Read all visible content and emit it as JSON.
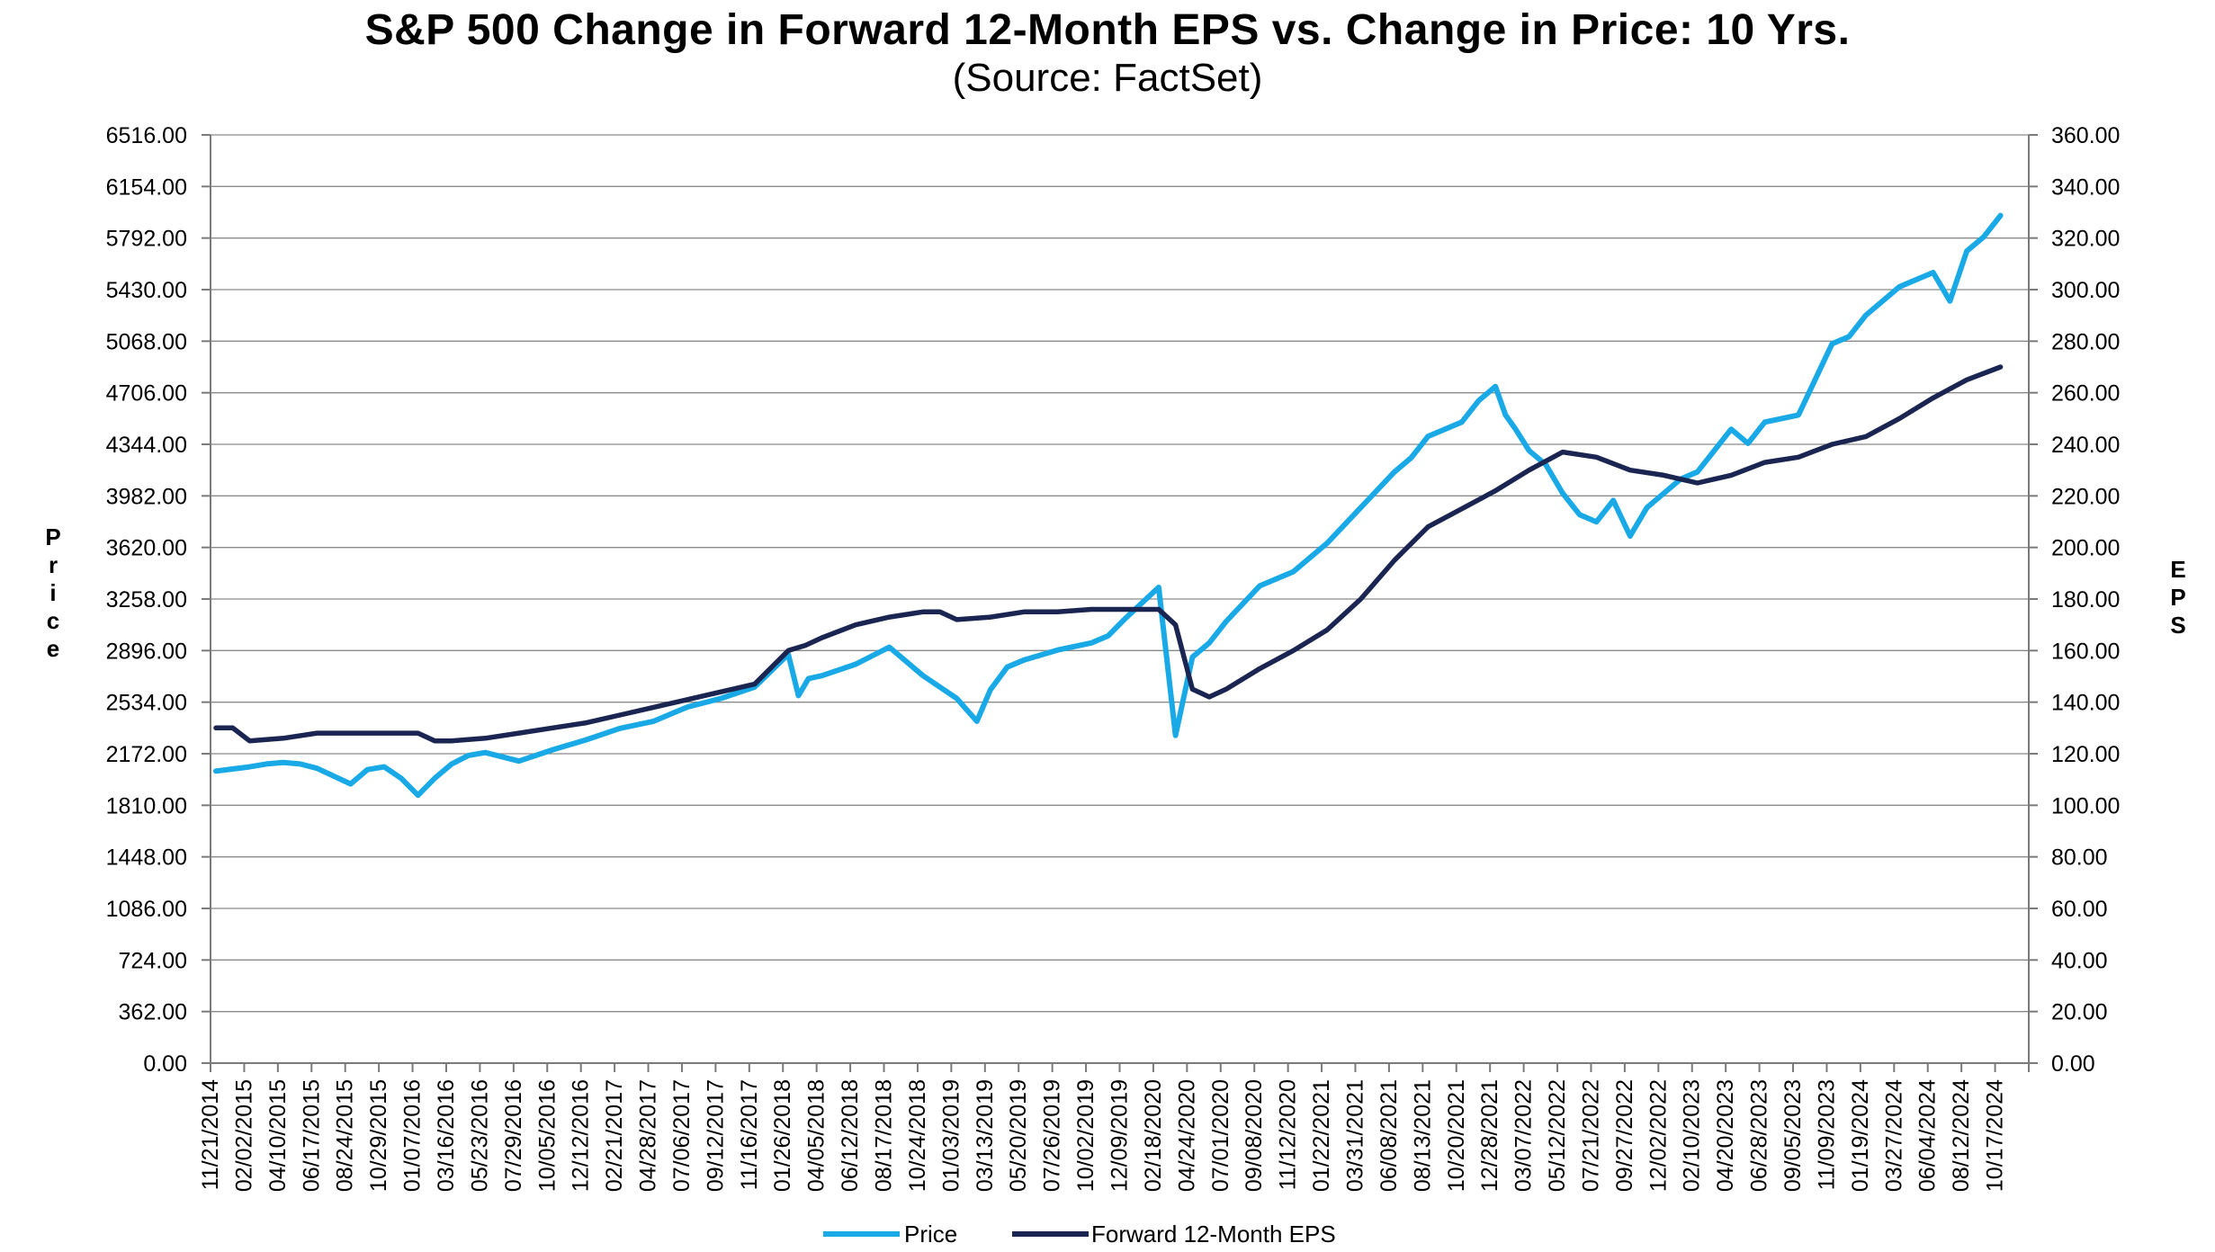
{
  "chart_data": {
    "type": "line",
    "title": "S&P 500 Change in Forward 12-Month EPS vs. Change in Price: 10 Yrs.",
    "subtitle": "(Source: FactSet)",
    "ylabel_left": "Price",
    "ylabel_right": "EPS",
    "ylim_left": [
      0,
      6516
    ],
    "ylim_right": [
      0,
      360
    ],
    "y_ticks_left": [
      "6516.00",
      "6154.00",
      "5792.00",
      "5430.00",
      "5068.00",
      "4706.00",
      "4344.00",
      "3982.00",
      "3620.00",
      "3258.00",
      "2896.00",
      "2534.00",
      "2172.00",
      "1810.00",
      "1448.00",
      "1086.00",
      "724.00",
      "362.00",
      "0.00"
    ],
    "y_ticks_right": [
      "360.00",
      "340.00",
      "320.00",
      "300.00",
      "280.00",
      "260.00",
      "240.00",
      "220.00",
      "200.00",
      "180.00",
      "160.00",
      "140.00",
      "120.00",
      "100.00",
      "80.00",
      "60.00",
      "40.00",
      "20.00",
      "0.00"
    ],
    "x_ticks": [
      "11/21/2014",
      "02/02/2015",
      "04/10/2015",
      "06/17/2015",
      "08/24/2015",
      "10/29/2015",
      "01/07/2016",
      "03/16/2016",
      "05/23/2016",
      "07/29/2016",
      "10/05/2016",
      "12/12/2016",
      "02/21/2017",
      "04/28/2017",
      "07/06/2017",
      "09/12/2017",
      "11/16/2017",
      "01/26/2018",
      "04/05/2018",
      "06/12/2018",
      "08/17/2018",
      "10/24/2018",
      "01/03/2019",
      "03/13/2019",
      "05/20/2019",
      "07/26/2019",
      "10/02/2019",
      "12/09/2019",
      "02/18/2020",
      "04/24/2020",
      "07/01/2020",
      "09/08/2020",
      "11/12/2020",
      "01/22/2021",
      "03/31/2021",
      "06/08/2021",
      "08/13/2021",
      "10/20/2021",
      "12/28/2021",
      "03/07/2022",
      "05/12/2022",
      "07/21/2022",
      "09/27/2022",
      "12/02/2022",
      "02/10/2023",
      "04/20/2023",
      "06/28/2023",
      "09/05/2023",
      "11/09/2023",
      "01/19/2024",
      "03/27/2024",
      "06/04/2024",
      "08/12/2024",
      "10/17/2024"
    ],
    "grid": true,
    "legend_position": "bottom",
    "series": [
      {
        "name": "Price",
        "axis": "left",
        "color": "#19a9e6",
        "x": [
          0,
          1,
          1.5,
          2,
          2.5,
          3,
          4,
          4.5,
          5,
          5.5,
          6,
          6.5,
          7,
          7.5,
          8,
          9,
          10,
          11,
          12,
          13,
          14,
          15,
          16,
          17,
          17.3,
          17.6,
          18,
          19,
          20,
          21,
          22,
          22.6,
          23,
          23.5,
          24,
          25,
          26,
          26.5,
          27,
          28,
          28.5,
          29,
          29.5,
          30,
          31,
          32,
          33,
          34,
          35,
          35.5,
          36,
          37,
          37.5,
          38,
          38.3,
          38.6,
          39,
          39.5,
          40,
          40.5,
          41,
          41.5,
          42,
          42.5,
          43,
          43.5,
          44,
          45,
          45.5,
          46,
          47,
          47.5,
          48,
          48.5,
          49,
          50,
          51,
          51.5,
          52,
          52.5,
          53
        ],
        "values": [
          2050,
          2080,
          2100,
          2110,
          2100,
          2070,
          1960,
          2060,
          2080,
          2000,
          1880,
          2000,
          2100,
          2160,
          2180,
          2120,
          2200,
          2270,
          2350,
          2400,
          2500,
          2560,
          2640,
          2870,
          2580,
          2700,
          2720,
          2800,
          2920,
          2720,
          2560,
          2400,
          2620,
          2780,
          2830,
          2900,
          2950,
          3000,
          3120,
          3340,
          2300,
          2850,
          2950,
          3100,
          3350,
          3450,
          3650,
          3900,
          4150,
          4250,
          4400,
          4500,
          4650,
          4750,
          4550,
          4450,
          4300,
          4200,
          4000,
          3850,
          3800,
          3950,
          3700,
          3900,
          4000,
          4100,
          4150,
          4450,
          4350,
          4500,
          4550,
          4800,
          5050,
          5100,
          5250,
          5450,
          5550,
          5350,
          5700,
          5800,
          5950
        ]
      },
      {
        "name": "Forward 12-Month EPS",
        "axis": "right",
        "color": "#1a2552",
        "x": [
          0,
          0.5,
          1,
          2,
          3,
          4,
          5,
          6,
          6.5,
          7,
          8,
          9,
          10,
          11,
          12,
          13,
          14,
          15,
          16,
          17,
          17.5,
          18,
          19,
          20,
          21,
          21.5,
          22,
          23,
          24,
          25,
          26,
          27,
          28,
          28.5,
          29,
          29.5,
          30,
          31,
          32,
          33,
          34,
          35,
          36,
          37,
          38,
          39,
          40,
          41,
          42,
          43,
          44,
          45,
          46,
          47,
          48,
          49,
          50,
          51,
          52,
          53
        ],
        "values": [
          130,
          130,
          125,
          126,
          128,
          128,
          128,
          128,
          125,
          125,
          126,
          128,
          130,
          132,
          135,
          138,
          141,
          144,
          147,
          160,
          162,
          165,
          170,
          173,
          175,
          175,
          172,
          173,
          175,
          175,
          176,
          176,
          176,
          170,
          145,
          142,
          145,
          153,
          160,
          168,
          180,
          195,
          208,
          215,
          222,
          230,
          237,
          235,
          230,
          228,
          225,
          228,
          233,
          235,
          240,
          243,
          250,
          258,
          265,
          270
        ]
      }
    ]
  },
  "legend": {
    "price_label": "Price",
    "eps_label": "Forward 12-Month EPS"
  }
}
